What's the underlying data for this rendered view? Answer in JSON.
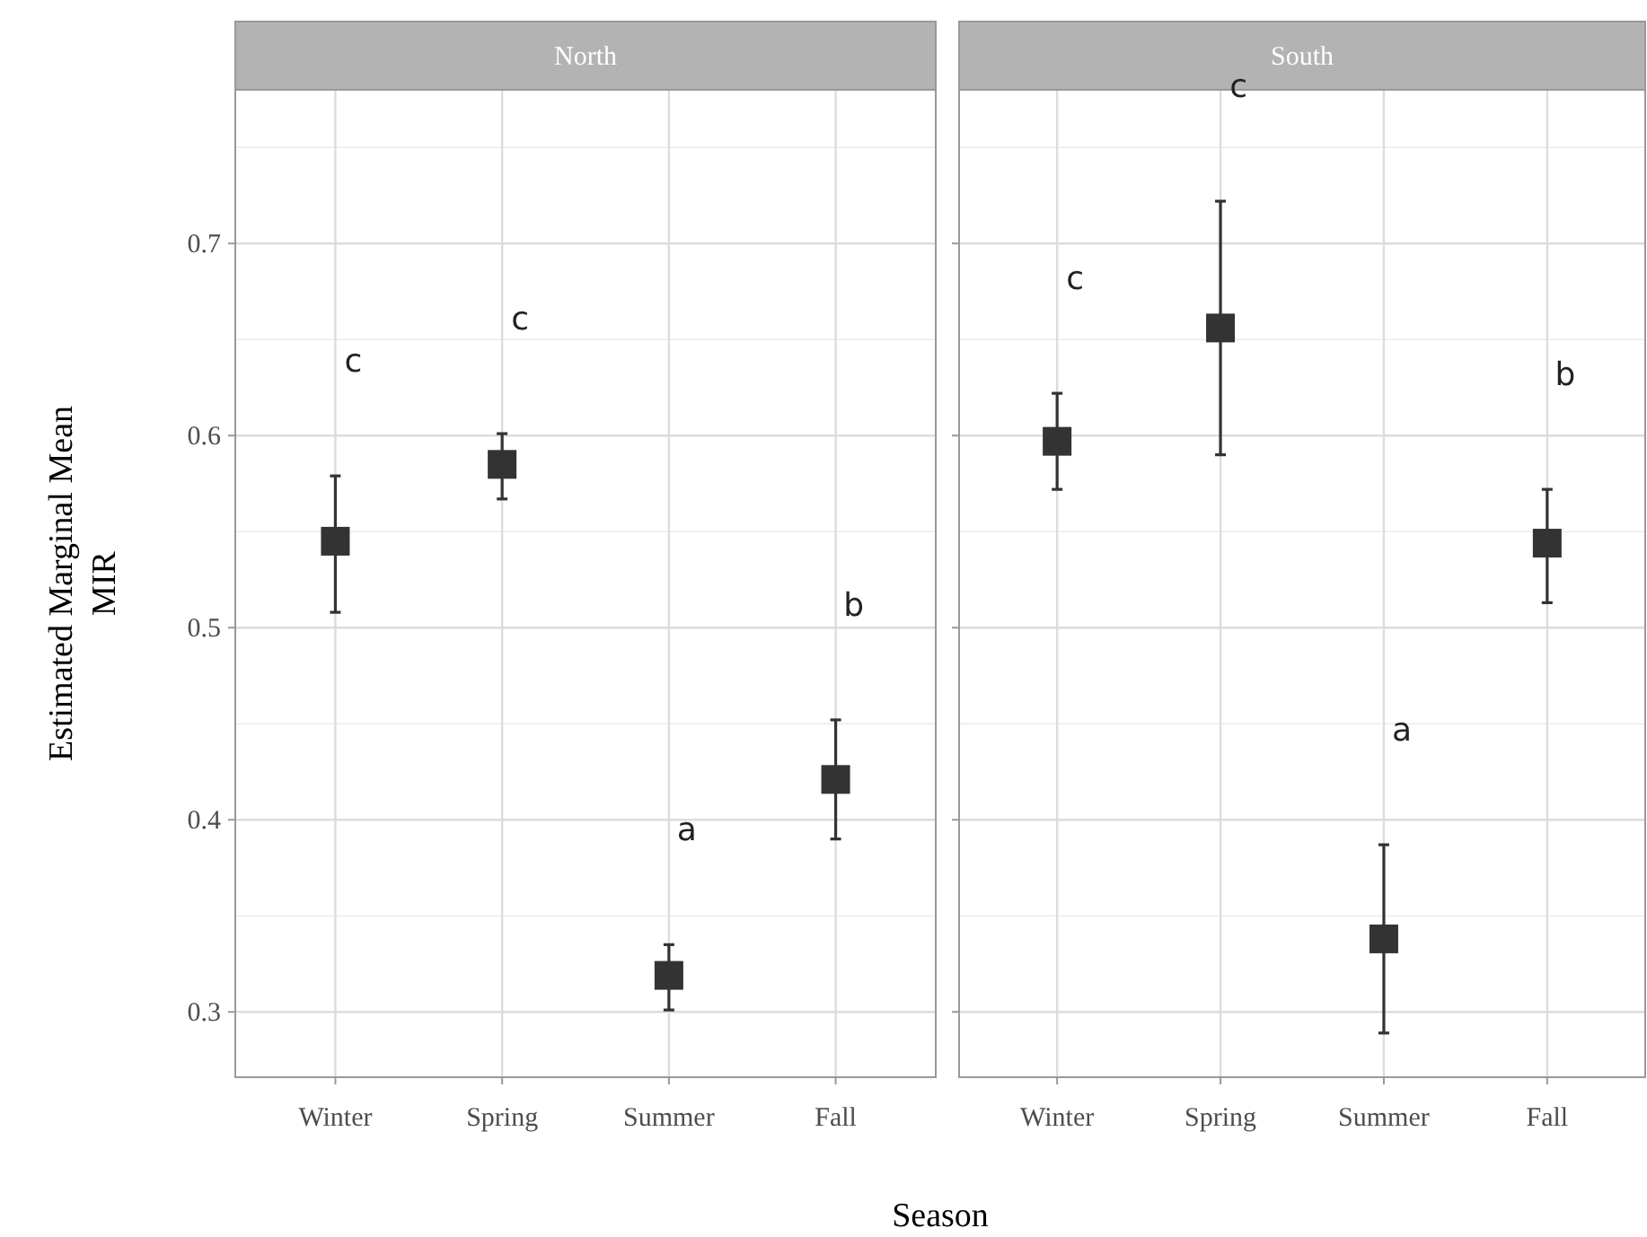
{
  "chart_data": [
    {
      "type": "scatter",
      "title": "North",
      "ylabel": "Estimated Marginal Mean\nMIR",
      "xlabel": "Season",
      "categories": [
        "Winter",
        "Spring",
        "Summer",
        "Fall"
      ],
      "marker": "square",
      "grid": true,
      "ylim": [
        0.266,
        0.78
      ],
      "yticks": [
        0.3,
        0.4,
        0.5,
        0.6,
        0.7
      ],
      "series": [
        {
          "color": "#333333",
          "values": [
            0.545,
            0.585,
            0.319,
            0.421
          ],
          "errors": [
            [
              0.508,
              0.579
            ],
            [
              0.567,
              0.601
            ],
            [
              0.301,
              0.335
            ],
            [
              0.39,
              0.452
            ]
          ]
        }
      ],
      "annotations": [
        "c",
        "c",
        "a",
        "b"
      ]
    },
    {
      "type": "scatter",
      "title": "South",
      "categories": [
        "Winter",
        "Spring",
        "Summer",
        "Fall"
      ],
      "marker": "square",
      "grid": true,
      "ylim": [
        0.266,
        0.78
      ],
      "yticks": [
        0.3,
        0.4,
        0.5,
        0.6,
        0.7
      ],
      "tick_labels": "x",
      "series": [
        {
          "color": "#333333",
          "values": [
            0.597,
            0.656,
            0.338,
            0.544
          ],
          "errors": [
            [
              0.572,
              0.622
            ],
            [
              0.59,
              0.722
            ],
            [
              0.289,
              0.387
            ],
            [
              0.513,
              0.572
            ]
          ]
        }
      ],
      "annotations": [
        "c",
        "c",
        "a",
        "b"
      ]
    }
  ]
}
